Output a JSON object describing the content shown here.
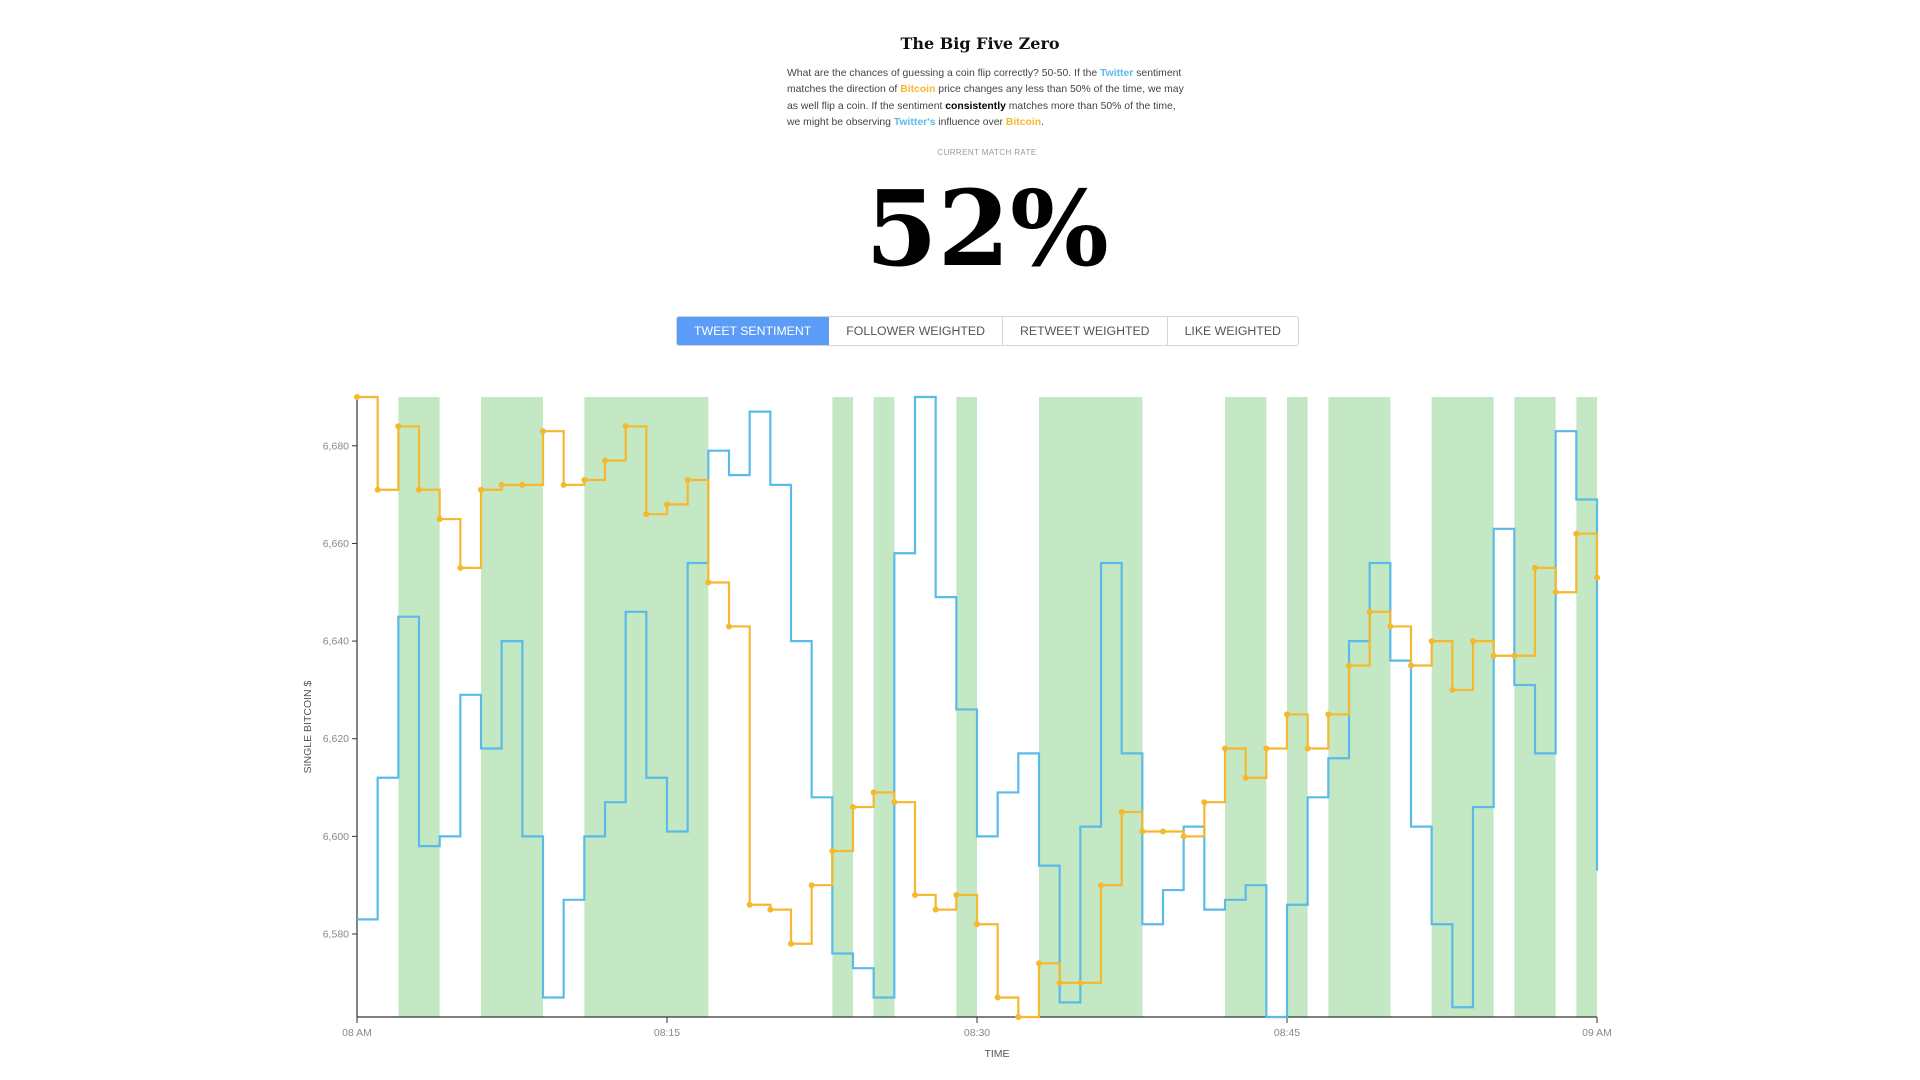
{
  "header": {
    "title": "The Big Five Zero",
    "intro_segments": [
      {
        "text": "What are the chances of guessing a coin flip correctly? 50-50. If the ",
        "style": "plain"
      },
      {
        "text": "Twitter",
        "style": "twitter"
      },
      {
        "text": " sentiment matches the direction of ",
        "style": "plain"
      },
      {
        "text": "Bitcoin",
        "style": "bitcoin"
      },
      {
        "text": " price changes any less than 50% of the time, we may as well flip a coin. If the sentiment ",
        "style": "plain"
      },
      {
        "text": "consistently",
        "style": "emphasis"
      },
      {
        "text": " matches more than 50% of the time, we might be observing ",
        "style": "plain"
      },
      {
        "text": "Twitter's",
        "style": "twitter"
      },
      {
        "text": " influence over ",
        "style": "plain"
      },
      {
        "text": "Bitcoin",
        "style": "bitcoin"
      },
      {
        "text": ".",
        "style": "plain"
      }
    ],
    "rate_label": "CURRENT MATCH RATE",
    "rate_value": "52%"
  },
  "tabs": [
    {
      "label": "TWEET SENTIMENT",
      "active": true
    },
    {
      "label": "FOLLOWER WEIGHTED",
      "active": false
    },
    {
      "label": "RETWEET WEIGHTED",
      "active": false
    },
    {
      "label": "LIKE WEIGHTED",
      "active": false
    }
  ],
  "colors": {
    "twitter": "#5bbbe8",
    "bitcoin": "#f5b82e",
    "match": "#c3e8c3",
    "axis": "#333333",
    "tab_active": "#5a9cf8"
  },
  "chart_data": {
    "type": "line",
    "xlabel": "TIME",
    "ylabel": "SINGLE BITCOIN $",
    "xlim": [
      0,
      60
    ],
    "ylim": [
      6563,
      6690
    ],
    "x_ticks": [
      {
        "value": 0,
        "label": "08 AM"
      },
      {
        "value": 15,
        "label": "08:15"
      },
      {
        "value": 30,
        "label": "08:30"
      },
      {
        "value": 45,
        "label": "08:45"
      },
      {
        "value": 60,
        "label": "09 AM"
      }
    ],
    "y_ticks": [
      {
        "value": 6580,
        "label": "6,580"
      },
      {
        "value": 6600,
        "label": "6,600"
      },
      {
        "value": 6620,
        "label": "6,620"
      },
      {
        "value": 6640,
        "label": "6,640"
      },
      {
        "value": 6660,
        "label": "6,660"
      },
      {
        "value": 6680,
        "label": "6,680"
      }
    ],
    "grid": false,
    "match_intervals": [
      [
        2,
        4
      ],
      [
        6,
        9
      ],
      [
        11,
        17
      ],
      [
        23,
        24
      ],
      [
        25,
        26
      ],
      [
        29,
        30
      ],
      [
        33,
        38
      ],
      [
        42,
        44
      ],
      [
        45,
        46
      ],
      [
        47,
        50
      ],
      [
        52,
        55
      ],
      [
        56,
        58
      ],
      [
        59,
        60
      ]
    ],
    "series": [
      {
        "key": "twitter",
        "step": "after",
        "x": [
          0,
          1,
          2,
          3,
          4,
          5,
          6,
          7,
          8,
          9,
          10,
          11,
          12,
          13,
          14,
          15,
          16,
          17,
          18,
          19,
          20,
          21,
          22,
          23,
          24,
          25,
          26,
          27,
          28,
          29,
          30,
          31,
          32,
          33,
          34,
          35,
          36,
          37,
          38,
          39,
          40,
          41,
          42,
          43,
          44,
          45,
          46,
          47,
          48,
          49,
          50,
          51,
          52,
          53,
          54,
          55,
          56,
          57,
          58,
          59,
          60
        ],
        "values": [
          6583,
          6612,
          6645,
          6598,
          6600,
          6629,
          6618,
          6640,
          6600,
          6567,
          6587,
          6600,
          6607,
          6646,
          6612,
          6601,
          6656,
          6679,
          6674,
          6687,
          6672,
          6640,
          6608,
          6576,
          6573,
          6567,
          6658,
          6690,
          6649,
          6626,
          6600,
          6609,
          6617,
          6594,
          6566,
          6602,
          6656,
          6617,
          6582,
          6589,
          6602,
          6585,
          6587,
          6590,
          6563,
          6586,
          6608,
          6616,
          6640,
          6656,
          6636,
          6602,
          6582,
          6565,
          6606,
          6663,
          6631,
          6617,
          6683,
          6669,
          6593
        ]
      },
      {
        "key": "bitcoin",
        "step": "after",
        "x": [
          0,
          1,
          2,
          3,
          4,
          5,
          6,
          7,
          8,
          9,
          10,
          11,
          12,
          13,
          14,
          15,
          16,
          17,
          18,
          19,
          20,
          21,
          22,
          23,
          24,
          25,
          26,
          27,
          28,
          29,
          30,
          31,
          32,
          33,
          34,
          35,
          36,
          37,
          38,
          39,
          40,
          41,
          42,
          43,
          44,
          45,
          46,
          47,
          48,
          49,
          50,
          51,
          52,
          53,
          54,
          55,
          56,
          57,
          58,
          59,
          60
        ],
        "values": [
          6690,
          6671,
          6684,
          6671,
          6665,
          6655,
          6671,
          6672,
          6672,
          6683,
          6672,
          6673,
          6677,
          6684,
          6666,
          6668,
          6673,
          6652,
          6643,
          6586,
          6585,
          6578,
          6590,
          6597,
          6606,
          6609,
          6607,
          6588,
          6585,
          6588,
          6582,
          6567,
          6563,
          6574,
          6570,
          6570,
          6590,
          6605,
          6601,
          6601,
          6600,
          6607,
          6618,
          6612,
          6618,
          6625,
          6618,
          6625,
          6635,
          6646,
          6643,
          6635,
          6640,
          6630,
          6640,
          6637,
          6637,
          6655,
          6650,
          6662,
          6653
        ]
      }
    ]
  }
}
